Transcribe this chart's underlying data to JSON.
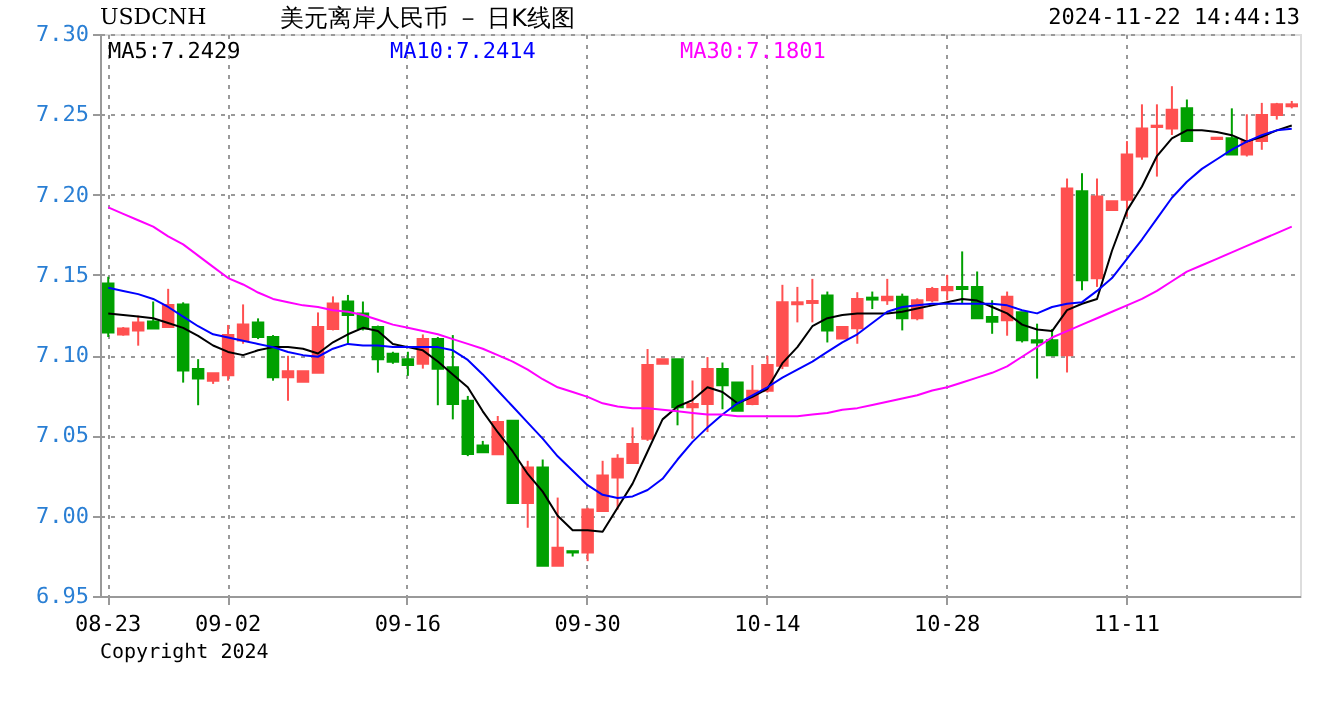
{
  "chart_data": {
    "type": "candlestick",
    "title": "美元离岸人民币 － 日K线图",
    "annotations": [
      "USDCNH",
      "2024-11-22 14:44:13",
      "Copyright 2024"
    ],
    "categories": [
      "08-23",
      null,
      null,
      null,
      null,
      null,
      null,
      null,
      "09-02",
      null,
      null,
      null,
      null,
      null,
      null,
      null,
      null,
      null,
      null,
      null,
      "09-16",
      null,
      null,
      null,
      null,
      null,
      null,
      null,
      null,
      null,
      null,
      null,
      "09-30",
      null,
      null,
      null,
      null,
      null,
      null,
      null,
      null,
      null,
      null,
      null,
      "10-14",
      null,
      null,
      null,
      null,
      null,
      null,
      null,
      null,
      null,
      null,
      null,
      "10-28",
      null,
      null,
      null,
      null,
      null,
      null,
      null,
      null,
      null,
      null,
      null,
      "11-11",
      null,
      null,
      null,
      null,
      null,
      null,
      null,
      null,
      null,
      null,
      null
    ],
    "ohlc": [
      [
        7.1446,
        7.1488,
        7.1113,
        7.1141
      ],
      [
        7.1129,
        7.1175,
        7.1121,
        7.1166
      ],
      [
        7.1154,
        7.1246,
        7.1059,
        7.1204
      ],
      [
        7.1209,
        7.1334,
        7.1166,
        7.1166
      ],
      [
        7.1175,
        7.1413,
        7.1175,
        7.1313
      ],
      [
        7.1316,
        7.1329,
        7.0829,
        7.0904
      ],
      [
        7.0913,
        7.0975,
        7.0688,
        7.0854
      ],
      [
        7.0841,
        7.0888,
        7.0821,
        7.0888
      ],
      [
        7.0875,
        7.1188,
        7.0841,
        7.1125
      ],
      [
        7.1091,
        7.1316,
        7.1071,
        7.1191
      ],
      [
        7.1204,
        7.1229,
        7.11,
        7.1113
      ],
      [
        7.1113,
        7.1125,
        7.0841,
        7.0863
      ],
      [
        7.0863,
        7.0996,
        7.0716,
        7.09
      ],
      [
        7.0834,
        7.09,
        7.0834,
        7.09
      ],
      [
        7.0891,
        7.1266,
        7.0891,
        7.1175
      ],
      [
        7.1163,
        7.1366,
        7.1154,
        7.1321
      ],
      [
        7.1334,
        7.1375,
        7.1071,
        7.125
      ],
      [
        7.1259,
        7.1334,
        7.1154,
        7.1166
      ],
      [
        7.1175,
        7.1184,
        7.0891,
        7.0975
      ],
      [
        7.1009,
        7.1021,
        7.0946,
        7.0959
      ],
      [
        7.0975,
        7.1021,
        7.0871,
        7.0938
      ],
      [
        7.0946,
        7.1129,
        7.0916,
        7.11
      ],
      [
        7.11,
        7.1113,
        7.0688,
        7.0916
      ],
      [
        7.0925,
        7.1125,
        7.06,
        7.0696
      ],
      [
        7.0716,
        7.0746,
        7.0371,
        7.0384
      ],
      [
        7.0438,
        7.0466,
        7.0396,
        7.0396
      ],
      [
        7.0383,
        7.0621,
        7.0383,
        7.0584
      ],
      [
        7.0592,
        7.0592,
        7.0079,
        7.0079
      ],
      [
        7.0079,
        7.0342,
        6.9925,
        7.03
      ],
      [
        7.03,
        7.035,
        6.9688,
        6.9688
      ],
      [
        6.9688,
        7.0113,
        6.9688,
        6.98
      ],
      [
        6.9779,
        6.9779,
        6.9746,
        6.9771
      ],
      [
        6.9771,
        7.005,
        6.9717,
        7.0038
      ],
      [
        7.0029,
        7.0342,
        7.0029,
        7.025
      ],
      [
        7.0238,
        7.0383,
        7.0038,
        7.0354
      ],
      [
        7.0329,
        7.055,
        7.0329,
        7.0446
      ],
      [
        7.0479,
        7.1038,
        7.0466,
        7.0938
      ],
      [
        7.0946,
        7.0975,
        7.0946,
        7.0975
      ],
      [
        7.0975,
        7.0975,
        7.0563,
        7.0675
      ],
      [
        7.0675,
        7.0842,
        7.0479,
        7.0696
      ],
      [
        7.0696,
        7.0988,
        7.0521,
        7.0913
      ],
      [
        7.0913,
        7.0954,
        7.0663,
        7.0813
      ],
      [
        7.0829,
        7.0829,
        7.0654,
        7.0654
      ],
      [
        7.0696,
        7.0938,
        7.0688,
        7.0779
      ],
      [
        7.0779,
        7.0996,
        7.0767,
        7.0938
      ],
      [
        7.0934,
        7.1438,
        7.0913,
        7.1329
      ],
      [
        7.1317,
        7.1425,
        7.1204,
        7.1329
      ],
      [
        7.1325,
        7.1475,
        7.1204,
        7.1337
      ],
      [
        7.1371,
        7.1396,
        7.1079,
        7.1154
      ],
      [
        7.1104,
        7.1175,
        7.1104,
        7.1175
      ],
      [
        7.1167,
        7.1392,
        7.1071,
        7.135
      ],
      [
        7.1358,
        7.1396,
        7.1287,
        7.1346
      ],
      [
        7.1342,
        7.1475,
        7.1313,
        7.1363
      ],
      [
        7.1363,
        7.1383,
        7.1154,
        7.1229
      ],
      [
        7.1229,
        7.1354,
        7.1217,
        7.1342
      ],
      [
        7.1342,
        7.1425,
        7.1329,
        7.1412
      ],
      [
        7.1404,
        7.15,
        7.1342,
        7.1425
      ],
      [
        7.1425,
        7.1646,
        7.1321,
        7.1412
      ],
      [
        7.1425,
        7.1521,
        7.1229,
        7.1229
      ],
      [
        7.1237,
        7.1342,
        7.1133,
        7.1208
      ],
      [
        7.1217,
        7.1396,
        7.1121,
        7.1363
      ],
      [
        7.1267,
        7.1267,
        7.1079,
        7.1092
      ],
      [
        7.1092,
        7.1196,
        7.0854,
        7.1079
      ],
      [
        7.1092,
        7.1163,
        7.1,
        7.1
      ],
      [
        7.1,
        7.21,
        7.0892,
        7.2038
      ],
      [
        7.2021,
        7.2133,
        7.1404,
        7.1467
      ],
      [
        7.1479,
        7.21,
        7.1425,
        7.1988
      ],
      [
        7.1904,
        7.1958,
        7.1904,
        7.1958
      ],
      [
        7.1967,
        7.2333,
        7.1863,
        7.225
      ],
      [
        7.2237,
        7.2562,
        7.2217,
        7.2412
      ],
      [
        7.2421,
        7.2562,
        7.2112,
        7.2429
      ],
      [
        7.2412,
        7.2675,
        7.2371,
        7.2529
      ],
      [
        7.2537,
        7.2592,
        7.2333,
        7.2333
      ],
      null,
      [
        7.2346,
        7.2354,
        7.2346,
        7.2354
      ],
      [
        7.235,
        7.2537,
        7.225,
        7.225
      ],
      [
        7.225,
        7.25,
        7.2237,
        7.2333
      ],
      [
        7.2333,
        7.2571,
        7.2279,
        7.2496
      ],
      [
        7.2496,
        7.2571,
        7.2467,
        7.2562
      ],
      [
        7.255,
        7.2583,
        7.2537,
        7.2562
      ]
    ],
    "colors": [
      "#00a000",
      "#ff5050",
      "#ff5050",
      "#00a000",
      "#ff5050",
      "#00a000",
      "#00a000",
      "#ff5050",
      "#ff5050",
      "#ff5050",
      "#00a000",
      "#00a000",
      "#ff5050",
      "#ff5050",
      "#ff5050",
      "#ff5050",
      "#00a000",
      "#00a000",
      "#00a000",
      "#00a000",
      "#00a000",
      "#ff5050",
      "#00a000",
      "#00a000",
      "#00a000",
      "#00a000",
      "#ff5050",
      "#00a000",
      "#ff5050",
      "#00a000",
      "#ff5050",
      "#00a000",
      "#ff5050",
      "#ff5050",
      "#ff5050",
      "#ff5050",
      "#ff5050",
      "#ff5050",
      "#00a000",
      "#ff5050",
      "#ff5050",
      "#00a000",
      "#00a000",
      "#ff5050",
      "#ff5050",
      "#ff5050",
      "#ff5050",
      "#ff5050",
      "#00a000",
      "#ff5050",
      "#ff5050",
      "#00a000",
      "#ff5050",
      "#00a000",
      "#ff5050",
      "#ff5050",
      "#ff5050",
      "#00a000",
      "#00a000",
      "#00a000",
      "#ff5050",
      "#00a000",
      "#00a000",
      "#00a000",
      "#ff5050",
      "#00a000",
      "#ff5050",
      "#ff5050",
      "#ff5050",
      "#ff5050",
      "#ff5050",
      "#ff5050",
      "#00a000",
      null,
      "#ff5050",
      "#00a000",
      "#ff5050",
      "#ff5050",
      "#ff5050",
      "#ff5050"
    ],
    "series": [
      {
        "name": "MA5:7.2429",
        "type": "line",
        "color": "#000000",
        "values": [
          7.126,
          7.125,
          7.124,
          7.123,
          7.12,
          7.117,
          7.112,
          7.106,
          7.102,
          7.1,
          7.103,
          7.105,
          7.105,
          7.104,
          7.101,
          7.108,
          7.113,
          7.117,
          7.115,
          7.107,
          7.105,
          7.103,
          7.096,
          7.088,
          7.08,
          7.065,
          7.052,
          7.04,
          7.026,
          7.015,
          7.0,
          6.991,
          6.991,
          6.99,
          7.005,
          7.02,
          7.04,
          7.06,
          7.068,
          7.072,
          7.08,
          7.077,
          7.07,
          7.074,
          7.079,
          7.095,
          7.105,
          7.118,
          7.123,
          7.125,
          7.126,
          7.126,
          7.126,
          7.127,
          7.129,
          7.131,
          7.133,
          7.135,
          7.134,
          7.13,
          7.126,
          7.119,
          7.116,
          7.115,
          7.128,
          7.132,
          7.135,
          7.165,
          7.19,
          7.205,
          7.224,
          7.235,
          7.24,
          7.24,
          7.239,
          7.237,
          7.233,
          7.236,
          7.24,
          7.243
        ]
      },
      {
        "name": "MA10:7.2414",
        "type": "line",
        "color": "#0000ff",
        "values": [
          7.142,
          7.14,
          7.138,
          7.135,
          7.13,
          7.124,
          7.118,
          7.113,
          7.111,
          7.109,
          7.107,
          7.105,
          7.102,
          7.1,
          7.099,
          7.104,
          7.107,
          7.106,
          7.106,
          7.105,
          7.105,
          7.105,
          7.105,
          7.103,
          7.097,
          7.088,
          7.078,
          7.068,
          7.058,
          7.048,
          7.037,
          7.028,
          7.019,
          7.013,
          7.011,
          7.012,
          7.016,
          7.023,
          7.035,
          7.046,
          7.055,
          7.063,
          7.07,
          7.075,
          7.08,
          7.086,
          7.091,
          7.096,
          7.102,
          7.108,
          7.113,
          7.12,
          7.127,
          7.13,
          7.131,
          7.132,
          7.132,
          7.132,
          7.132,
          7.132,
          7.131,
          7.128,
          7.126,
          7.13,
          7.132,
          7.133,
          7.14,
          7.148,
          7.16,
          7.172,
          7.185,
          7.198,
          7.208,
          7.216,
          7.222,
          7.228,
          7.233,
          7.237,
          7.24,
          7.241
        ]
      },
      {
        "name": "MA30:7.1801",
        "type": "line",
        "color": "#ff00ff",
        "values": [
          7.192,
          7.188,
          7.184,
          7.18,
          7.174,
          7.169,
          7.162,
          7.155,
          7.148,
          7.144,
          7.139,
          7.135,
          7.133,
          7.131,
          7.13,
          7.128,
          7.127,
          7.125,
          7.122,
          7.119,
          7.117,
          7.115,
          7.113,
          7.11,
          7.107,
          7.104,
          7.1,
          7.096,
          7.091,
          7.085,
          7.08,
          7.077,
          7.074,
          7.07,
          7.068,
          7.067,
          7.067,
          7.066,
          7.065,
          7.064,
          7.063,
          7.063,
          7.062,
          7.062,
          7.062,
          7.062,
          7.062,
          7.063,
          7.064,
          7.066,
          7.067,
          7.069,
          7.071,
          7.073,
          7.075,
          7.078,
          7.08,
          7.083,
          7.086,
          7.089,
          7.093,
          7.099,
          7.105,
          7.111,
          7.115,
          7.119,
          7.123,
          7.127,
          7.131,
          7.135,
          7.14,
          7.146,
          7.152,
          7.156,
          7.16,
          7.164,
          7.168,
          7.172,
          7.176,
          7.18
        ]
      }
    ],
    "ylim": [
      6.95,
      7.3
    ],
    "yticks": [
      6.95,
      {
        "value": 7.0,
        "label": "7.00"
      },
      7.05,
      {
        "value": 7.1,
        "label": "7.10"
      },
      7.15,
      {
        "value": 7.2,
        "label": "7.20"
      },
      7.25,
      {
        "value": 7.3,
        "label": "7.30"
      }
    ],
    "grid": true,
    "legend": "top left",
    "line_style": "solid",
    "marker": "none"
  }
}
